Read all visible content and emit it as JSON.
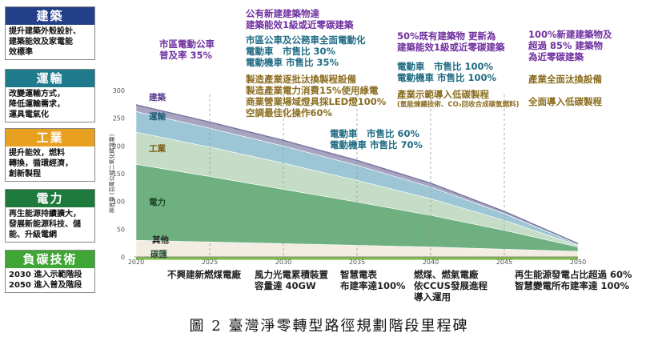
{
  "legend": [
    {
      "title": "建築",
      "color": "#243f8a",
      "body": "提升建築外殼設計、\n建築能效及家電能\n效標準"
    },
    {
      "title": "運輸",
      "color": "#1f7a8c",
      "body": "改變運輸方式，\n降低運輸需求，\n運具電氣化"
    },
    {
      "title": "工業",
      "color": "#e8a020",
      "body": "提升能效，燃料\n轉換，循環經濟，\n創新製程"
    },
    {
      "title": "電力",
      "color": "#1e7a3c",
      "body": "再生能源持續擴大，\n發展新能源科技、儲\n能、升級電網"
    },
    {
      "title": "負碳技術",
      "color": "#3fa535",
      "body": "2030 進入示範階段\n2050 進入普及階段"
    }
  ],
  "annotations": {
    "a2025": "市區電動公車\n普及率 35%",
    "a2030_top": "公有新建建築物達\n建築能效1級或近零碳建築",
    "a2030_teal": "市區公車及公務車全面電動化\n電動車　市售比 30%\n電動機車 市售比 35%",
    "a2030_olive": "製造產業逐批汰換製程設備\n製造產業電力消費15%使用綠電\n商業營業場域燈具採LED燈100%\n空調最佳化操作60%",
    "a2035": "電動車　市售比 60%\n電動機車 市售比 70%",
    "a2040_top": "50%既有建築物 更新為\n建築能效1級或近零碳建築",
    "a2040_teal": "電動車　市售比 100%\n電動機車 市售比 100%",
    "a2040_olive": "產業示範導入低碳製程",
    "a2040_small": "(氫能煉鐵技術、CO₂回收合成碳氫燃料)",
    "a2050_top": "100%新建建築物及\n超過 85% 建築物\n為近零碳建築",
    "a2050_olive1": "產業全面汰換設備",
    "a2050_olive2": "全面導入低碳製程"
  },
  "bottom_annotations": {
    "b2025": "不興建新燃煤電廠",
    "b2030": "風力光電累積裝置\n容量達 40GW",
    "b2035": "智慧電表\n布建率達100%",
    "b2040": "燃煤、燃氣電廠\n依CCUS發展進程\n導入運用",
    "b2045": "再生能源發電占比超過 60%\n智慧變電所布建率達 100%"
  },
  "caption": "圖 2  臺灣淨零轉型路徑規劃階段里程碑",
  "chart_data": {
    "type": "area",
    "stacked": true,
    "x": [
      2020,
      2025,
      2030,
      2035,
      2040,
      2045,
      2050
    ],
    "xlim": [
      2020,
      2050
    ],
    "ylim": [
      0,
      300
    ],
    "yticks": [
      0,
      50,
      100,
      150,
      200,
      250,
      300
    ],
    "ylabel": "排放量 (百萬公噸二氧化碳當量)",
    "grid": "vertical dashed at 2025, 2030, 2035, 2040, 2045",
    "series": [
      {
        "name": "碳匯",
        "color": "#7ac143",
        "values": [
          -5,
          -5,
          -5,
          -5,
          -5,
          -5,
          -5
        ]
      },
      {
        "name": "其他",
        "color": "#f2ece1",
        "values": [
          30,
          27,
          24,
          21,
          18,
          14,
          10
        ]
      },
      {
        "name": "電力",
        "color": "#6fb080",
        "values": [
          137,
          118,
          98,
          78,
          57,
          34,
          8
        ]
      },
      {
        "name": "工業",
        "color": "#c5ddc7",
        "values": [
          58,
          53,
          47,
          39,
          30,
          18,
          3
        ]
      },
      {
        "name": "運輸",
        "color": "#9cc6d5",
        "values": [
          37,
          34,
          31,
          27,
          21,
          12,
          2
        ]
      },
      {
        "name": "建築",
        "color": "#a7a4c2",
        "values": [
          12,
          11,
          10,
          9,
          7,
          4,
          1
        ]
      }
    ],
    "series_colors_note": "area fills ordered bottom to top"
  }
}
